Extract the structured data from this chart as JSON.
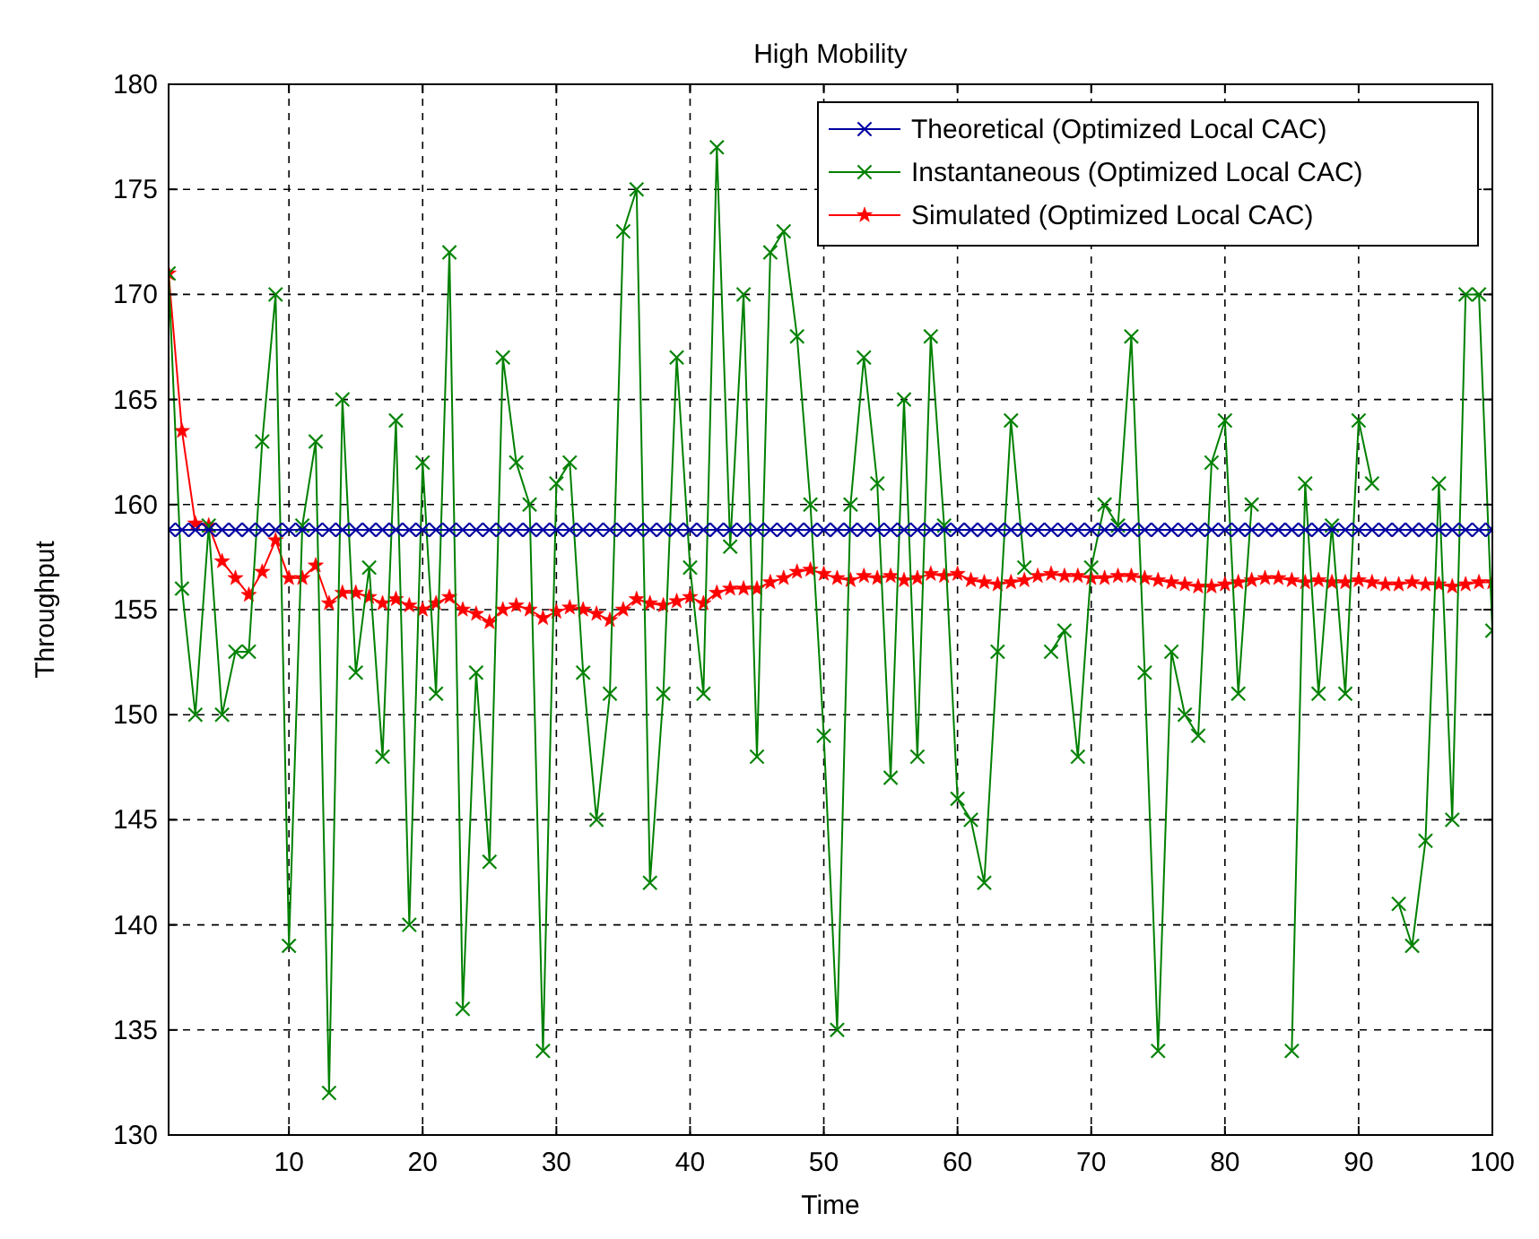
{
  "chart_data": {
    "type": "line",
    "title": "High Mobility",
    "xlabel": "Time",
    "ylabel": "Throughput",
    "x": [
      1,
      2,
      3,
      4,
      5,
      6,
      7,
      8,
      9,
      10,
      11,
      12,
      13,
      14,
      15,
      16,
      17,
      18,
      19,
      20,
      21,
      22,
      23,
      24,
      25,
      26,
      27,
      28,
      29,
      30,
      31,
      32,
      33,
      34,
      35,
      36,
      37,
      38,
      39,
      40,
      41,
      42,
      43,
      44,
      45,
      46,
      47,
      48,
      49,
      50,
      51,
      52,
      53,
      54,
      55,
      56,
      57,
      58,
      59,
      60,
      61,
      62,
      63,
      64,
      65,
      66,
      67,
      68,
      69,
      70,
      71,
      72,
      73,
      74,
      75,
      76,
      77,
      78,
      79,
      80,
      81,
      82,
      83,
      84,
      85,
      86,
      87,
      88,
      89,
      90,
      91,
      92,
      93,
      94,
      95,
      96,
      97,
      98,
      99,
      100
    ],
    "xlim": [
      1,
      100
    ],
    "xticks": [
      10,
      20,
      30,
      40,
      50,
      60,
      70,
      80,
      90,
      100
    ],
    "ylim": [
      130,
      180
    ],
    "yticks": [
      130,
      135,
      140,
      145,
      150,
      155,
      160,
      165,
      170,
      175,
      180
    ],
    "grid": true,
    "legend": "top right",
    "line_style": "solid",
    "series": [
      {
        "name": "Theoretical (Optimized Local CAC)",
        "color": "#0000a0",
        "marker": "cross",
        "values": [
          158.8,
          158.8,
          158.8,
          158.8,
          158.8,
          158.8,
          158.8,
          158.8,
          158.8,
          158.8,
          158.8,
          158.8,
          158.8,
          158.8,
          158.8,
          158.8,
          158.8,
          158.8,
          158.8,
          158.8,
          158.8,
          158.8,
          158.8,
          158.8,
          158.8,
          158.8,
          158.8,
          158.8,
          158.8,
          158.8,
          158.8,
          158.8,
          158.8,
          158.8,
          158.8,
          158.8,
          158.8,
          158.8,
          158.8,
          158.8,
          158.8,
          158.8,
          158.8,
          158.8,
          158.8,
          158.8,
          158.8,
          158.8,
          158.8,
          158.8,
          158.8,
          158.8,
          158.8,
          158.8,
          158.8,
          158.8,
          158.8,
          158.8,
          158.8,
          158.8,
          158.8,
          158.8,
          158.8,
          158.8,
          158.8,
          158.8,
          158.8,
          158.8,
          158.8,
          158.8,
          158.8,
          158.8,
          158.8,
          158.8,
          158.8,
          158.8,
          158.8,
          158.8,
          158.8,
          158.8,
          158.8,
          158.8,
          158.8,
          158.8,
          158.8,
          158.8,
          158.8,
          158.8,
          158.8,
          158.8,
          158.8,
          158.8,
          158.8,
          158.8,
          158.8,
          158.8,
          158.8,
          158.8,
          158.8,
          158.8
        ]
      },
      {
        "name": "Instantaneous (Optimized Local CAC)",
        "color": "#008000",
        "marker": "cross",
        "values": [
          171,
          156,
          150,
          159,
          150,
          153,
          153,
          163,
          170,
          139,
          159,
          163,
          132,
          165,
          152,
          157,
          148,
          164,
          140,
          162,
          151,
          172,
          136,
          152,
          143,
          167,
          162,
          160,
          134,
          161,
          162,
          152,
          145,
          151,
          173,
          175,
          142,
          151,
          167,
          157,
          151,
          177,
          158,
          170,
          148,
          172,
          173,
          168,
          160,
          149,
          135,
          160,
          167,
          161,
          147,
          165,
          148,
          168,
          159,
          146,
          145,
          142,
          153,
          164,
          157,
          null,
          153,
          154,
          148,
          157,
          160,
          159,
          168,
          152,
          134,
          153,
          150,
          149,
          162,
          164,
          151,
          160,
          null,
          null,
          134,
          161,
          151,
          159,
          151,
          164,
          161,
          null,
          141,
          139,
          144,
          161,
          145,
          170,
          170,
          154
        ]
      },
      {
        "name": "Simulated (Optimized Local CAC)",
        "color": "#ff0000",
        "marker": "star",
        "values": [
          171,
          163.5,
          159.1,
          159,
          157.3,
          156.5,
          155.7,
          156.8,
          158.3,
          156.5,
          156.5,
          157.1,
          155.3,
          155.8,
          155.8,
          155.6,
          155.3,
          155.5,
          155.2,
          155.0,
          155.3,
          155.6,
          155.0,
          154.8,
          154.4,
          155.0,
          155.2,
          155.0,
          154.6,
          154.9,
          155.1,
          155.0,
          154.8,
          154.5,
          155.0,
          155.5,
          155.3,
          155.2,
          155.4,
          155.6,
          155.3,
          155.8,
          156.0,
          156.0,
          156.0,
          156.3,
          156.5,
          156.8,
          156.9,
          156.7,
          156.5,
          156.4,
          156.6,
          156.5,
          156.6,
          156.4,
          156.5,
          156.7,
          156.6,
          156.7,
          156.4,
          156.3,
          156.2,
          156.3,
          156.4,
          156.6,
          156.7,
          156.6,
          156.6,
          156.5,
          156.5,
          156.6,
          156.6,
          156.5,
          156.4,
          156.3,
          156.2,
          156.1,
          156.1,
          156.2,
          156.3,
          156.4,
          156.5,
          156.5,
          156.4,
          156.3,
          156.4,
          156.3,
          156.3,
          156.4,
          156.3,
          156.2,
          156.2,
          156.3,
          156.2,
          156.2,
          156.1,
          156.2,
          156.3,
          156.3
        ]
      }
    ]
  }
}
